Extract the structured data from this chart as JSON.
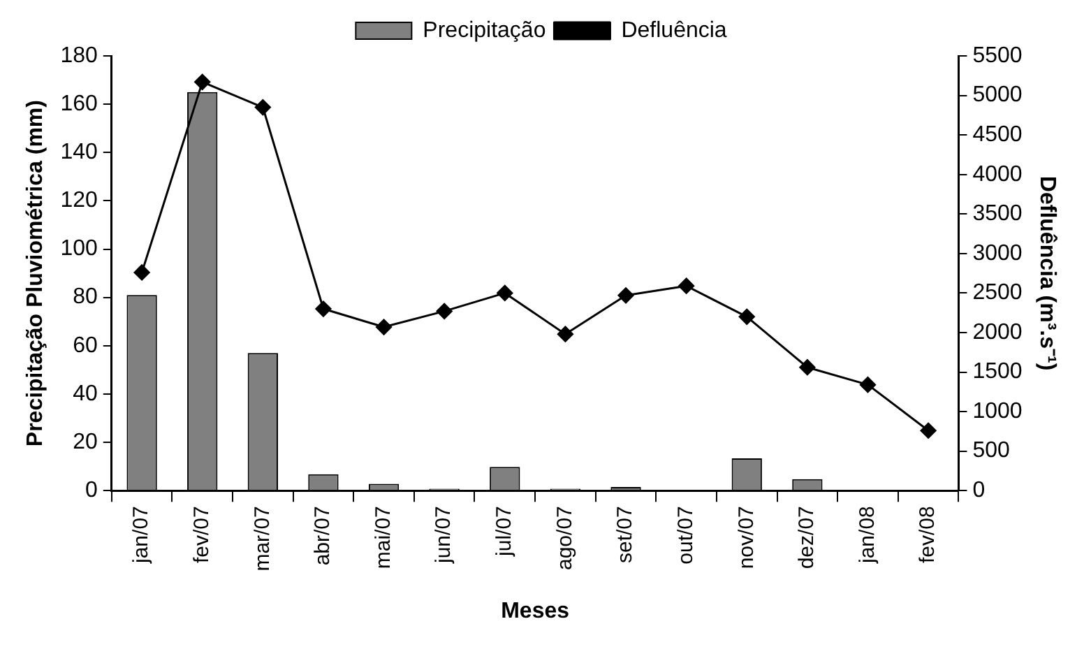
{
  "chart_data": {
    "type": "bar",
    "categories": [
      "jan/07",
      "fev/07",
      "mar/07",
      "abr/07",
      "mai/07",
      "jun/07",
      "jul/07",
      "ago/07",
      "set/07",
      "out/07",
      "nov/07",
      "dez/07",
      "jan/08",
      "fev/08"
    ],
    "series": [
      {
        "name": "Precipitação",
        "color": "#808080",
        "values": [
          81,
          165,
          57,
          6.8,
          2.8,
          0.8,
          9.8,
          0.8,
          1.5,
          0,
          13.4,
          4.8,
          0,
          0
        ]
      },
      {
        "name": "Defluência",
        "type": "line",
        "axis": "y2",
        "color": "#000000",
        "marker": "diamond",
        "values": [
          2760,
          5170,
          4850,
          2300,
          2070,
          2270,
          2500,
          1980,
          2470,
          2590,
          2200,
          1560,
          1340,
          760
        ]
      }
    ],
    "xlabel": "Meses",
    "ylabel": "Precipitação Pluviométrica (mm)",
    "y2label": "Defluência (m³.s⁻¹)",
    "ylim": [
      0,
      180
    ],
    "yticks": [
      0,
      20,
      40,
      60,
      80,
      100,
      120,
      140,
      160,
      180
    ],
    "y2lim": [
      0,
      5500
    ],
    "y2ticks": [
      0,
      500,
      1000,
      1500,
      2000,
      2500,
      3000,
      3500,
      4000,
      4500,
      5000,
      5500
    ],
    "grid": false,
    "legend": "top"
  }
}
